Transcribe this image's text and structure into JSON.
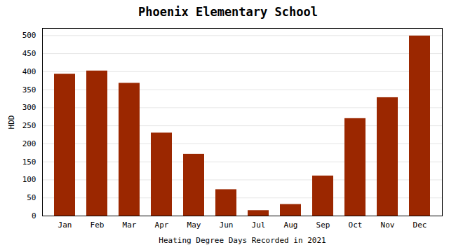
{
  "chart_data": {
    "type": "bar",
    "title": "Phoenix Elementary School",
    "xlabel": "Heating Degree Days Recorded in 2021",
    "ylabel": "HDD",
    "categories": [
      "Jan",
      "Feb",
      "Mar",
      "Apr",
      "May",
      "Jun",
      "Jul",
      "Aug",
      "Sep",
      "Oct",
      "Nov",
      "Dec"
    ],
    "values": [
      393,
      402,
      368,
      230,
      171,
      73,
      15,
      32,
      111,
      270,
      328,
      499
    ],
    "color": "#9B2700",
    "ylim": [
      0,
      520
    ],
    "yticks": [
      0,
      50,
      100,
      150,
      200,
      250,
      300,
      350,
      400,
      450,
      500
    ],
    "grid": true
  }
}
